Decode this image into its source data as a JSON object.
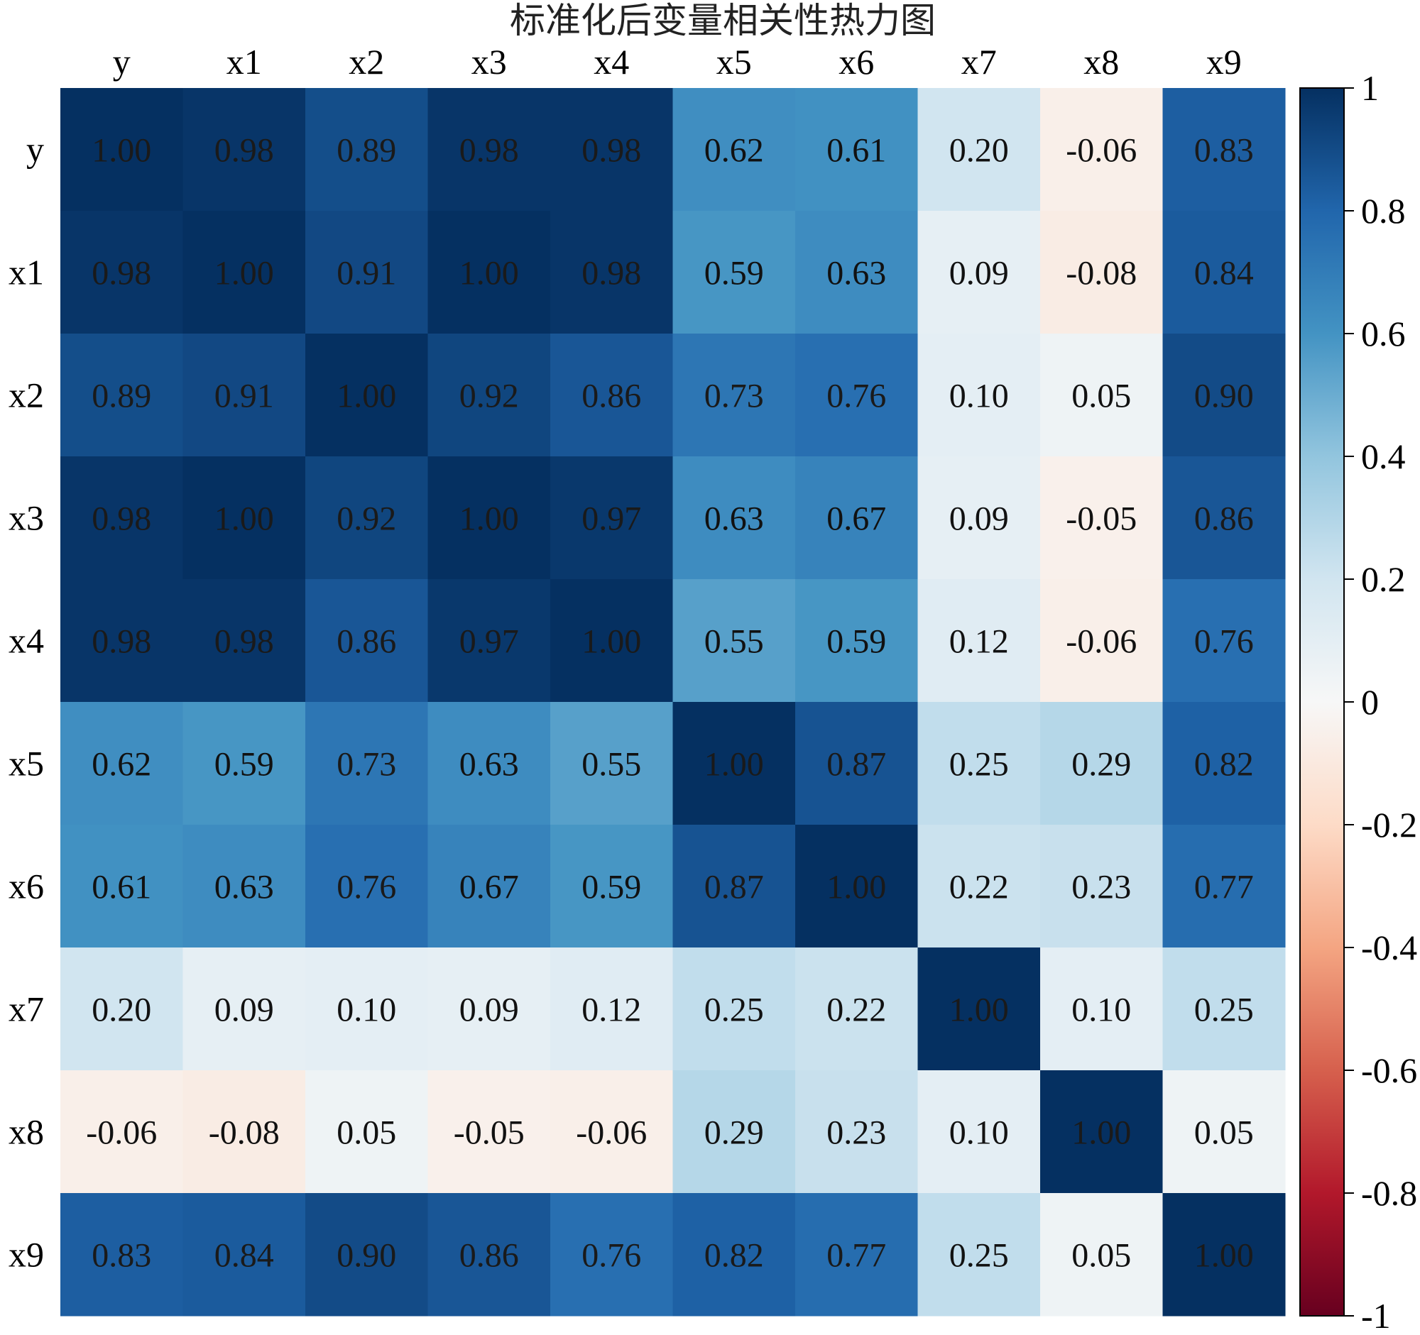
{
  "chart_data": {
    "type": "heatmap",
    "title": "标准化后变量相关性热力图",
    "xlabel": "",
    "ylabel": "",
    "x_categories": [
      "y",
      "x1",
      "x2",
      "x3",
      "x4",
      "x5",
      "x6",
      "x7",
      "x8",
      "x9"
    ],
    "y_categories": [
      "y",
      "x1",
      "x2",
      "x3",
      "x4",
      "x5",
      "x6",
      "x7",
      "x8",
      "x9"
    ],
    "values": [
      [
        1.0,
        0.98,
        0.89,
        0.98,
        0.98,
        0.62,
        0.61,
        0.2,
        -0.06,
        0.83
      ],
      [
        0.98,
        1.0,
        0.91,
        1.0,
        0.98,
        0.59,
        0.63,
        0.09,
        -0.08,
        0.84
      ],
      [
        0.89,
        0.91,
        1.0,
        0.92,
        0.86,
        0.73,
        0.76,
        0.1,
        0.05,
        0.9
      ],
      [
        0.98,
        1.0,
        0.92,
        1.0,
        0.97,
        0.63,
        0.67,
        0.09,
        -0.05,
        0.86
      ],
      [
        0.98,
        0.98,
        0.86,
        0.97,
        1.0,
        0.55,
        0.59,
        0.12,
        -0.06,
        0.76
      ],
      [
        0.62,
        0.59,
        0.73,
        0.63,
        0.55,
        1.0,
        0.87,
        0.25,
        0.29,
        0.82
      ],
      [
        0.61,
        0.63,
        0.76,
        0.67,
        0.59,
        0.87,
        1.0,
        0.22,
        0.23,
        0.77
      ],
      [
        0.2,
        0.09,
        0.1,
        0.09,
        0.12,
        0.25,
        0.22,
        1.0,
        0.1,
        0.25
      ],
      [
        -0.06,
        -0.08,
        0.05,
        -0.05,
        -0.06,
        0.29,
        0.23,
        0.1,
        1.0,
        0.05
      ],
      [
        0.83,
        0.84,
        0.9,
        0.86,
        0.76,
        0.82,
        0.77,
        0.25,
        0.05,
        1.0
      ]
    ],
    "value_format": "0.00",
    "colormap": "RdBu",
    "colormap_stops": [
      "#67001f",
      "#b2182b",
      "#d6604d",
      "#f4a582",
      "#fddbc7",
      "#f7f7f7",
      "#d1e5f0",
      "#92c5de",
      "#4393c3",
      "#2166ac",
      "#053061"
    ],
    "colorbar": {
      "range": [
        -1,
        1
      ],
      "ticks": [
        1,
        0.8,
        0.6,
        0.4,
        0.2,
        0,
        -0.2,
        -0.4,
        -0.6,
        -0.8,
        -1
      ],
      "tick_labels": [
        "1",
        "0.8",
        "0.6",
        "0.4",
        "0.2",
        "0",
        "-0.2",
        "-0.4",
        "-0.6",
        "-0.8",
        "-1"
      ]
    },
    "grid": false,
    "x_tick_position": "top",
    "colorbar_position": "right"
  }
}
